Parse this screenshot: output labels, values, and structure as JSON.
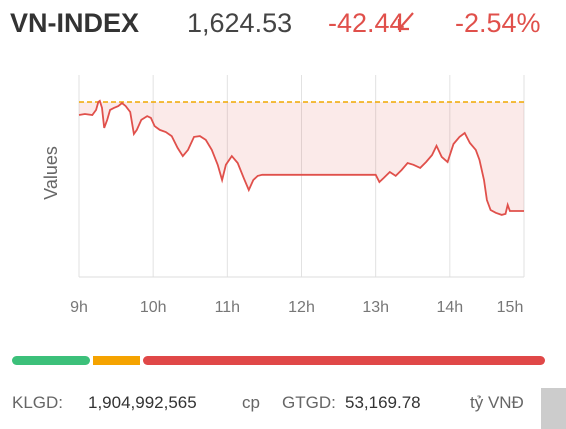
{
  "header": {
    "title": "VN-INDEX",
    "price": "1,624.53",
    "change": "-42.44",
    "change_percent": "-2.54%"
  },
  "chart_data": {
    "type": "line",
    "y_label": "Values",
    "x": [
      9.0,
      9.08,
      9.18,
      9.23,
      9.26,
      9.28,
      9.31,
      9.34,
      9.38,
      9.42,
      9.47,
      9.53,
      9.58,
      9.63,
      9.69,
      9.74,
      9.78,
      9.84,
      9.92,
      9.97,
      10.02,
      10.09,
      10.17,
      10.25,
      10.33,
      10.4,
      10.47,
      10.55,
      10.63,
      10.71,
      10.79,
      10.87,
      10.93,
      10.98,
      11.06,
      11.14,
      11.22,
      11.29,
      11.35,
      11.41,
      11.47,
      13.0,
      13.05,
      13.11,
      13.19,
      13.27,
      13.35,
      13.43,
      13.51,
      13.6,
      13.68,
      13.76,
      13.82,
      13.89,
      13.97,
      14.05,
      14.13,
      14.2,
      14.27,
      14.35,
      14.4,
      14.46,
      14.5,
      14.55,
      14.62,
      14.7,
      14.75,
      14.78,
      14.81,
      15.0
    ],
    "series": [
      {
        "color": "#e0504b",
        "values": [
          1661.9,
          1662.3,
          1661.9,
          1663.9,
          1667.0,
          1667.4,
          1664.7,
          1656.9,
          1660.0,
          1663.9,
          1664.7,
          1665.4,
          1666.6,
          1665.4,
          1663.1,
          1654.5,
          1656.1,
          1660.0,
          1661.5,
          1660.8,
          1657.6,
          1656.1,
          1655.3,
          1653.7,
          1649.1,
          1645.9,
          1648.3,
          1653.4,
          1653.7,
          1652.2,
          1648.3,
          1642.5,
          1636.6,
          1642.5,
          1645.9,
          1643.2,
          1637.4,
          1632.7,
          1636.6,
          1638.2,
          1638.6,
          1638.6,
          1635.8,
          1637.4,
          1639.7,
          1638.2,
          1640.5,
          1643.2,
          1642.5,
          1641.3,
          1643.6,
          1646.3,
          1649.9,
          1645.6,
          1643.6,
          1650.6,
          1653.4,
          1654.9,
          1651.0,
          1648.3,
          1644.4,
          1636.6,
          1628.8,
          1624.9,
          1623.8,
          1623.0,
          1623.4,
          1626.9,
          1624.5,
          1624.5
        ]
      }
    ],
    "reference": 1666.97,
    "reference_color": "#f0a800",
    "xlim": [
      9,
      15
    ],
    "ylim": [
      1598.8,
      1677.5
    ],
    "xticks": [
      {
        "value": 9,
        "label": "9h"
      },
      {
        "value": 10,
        "label": "10h"
      },
      {
        "value": 11,
        "label": "11h"
      },
      {
        "value": 12,
        "label": "12h"
      },
      {
        "value": 13,
        "label": "13h"
      },
      {
        "value": 14,
        "label": "14h"
      },
      {
        "value": 15,
        "label": "15h"
      }
    ],
    "grid": true
  },
  "footer": {
    "volume_label": "KLGD:",
    "volume": "1,904,992,565",
    "volume_unit": "cp",
    "value_label": "GTGD:",
    "value": "53,169.78",
    "value_unit": "tỷ VNĐ"
  }
}
